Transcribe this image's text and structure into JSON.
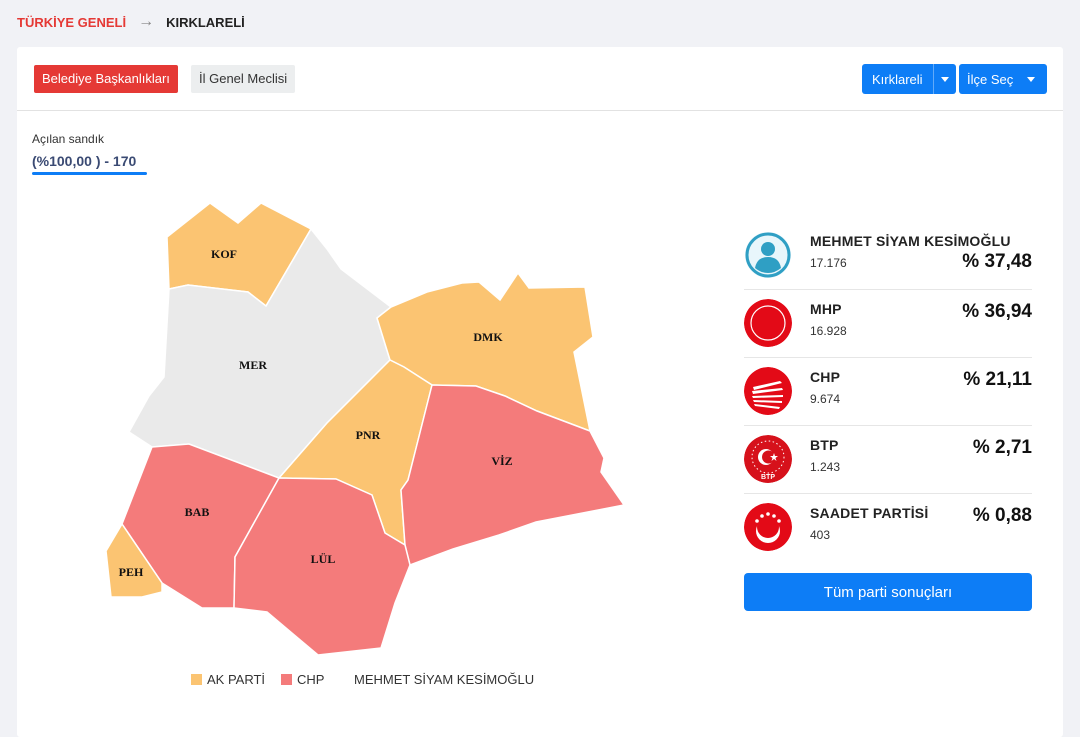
{
  "breadcrumb": {
    "home": "TÜRKİYE GENELİ",
    "current": "KIRKLARELİ"
  },
  "tabs": {
    "mayor": "Belediye Başkanlıkları",
    "council": "İl Genel Meclisi"
  },
  "dropdowns": {
    "province": "Kırklareli",
    "district": "İlçe Seç"
  },
  "sandik": {
    "label": "Açılan sandık",
    "value": "(%100,00 ) - 170",
    "progress_percent": 100
  },
  "colors": {
    "ak_parti": "#fbc472",
    "chp": "#f47b7b",
    "independent": "#eaeaea",
    "accent": "#0d7df6",
    "brand_red": "#e53935"
  },
  "districts": [
    {
      "code": "KOF",
      "winner": "ak_parti"
    },
    {
      "code": "MER",
      "winner": "independent"
    },
    {
      "code": "DMK",
      "winner": "ak_parti"
    },
    {
      "code": "PNR",
      "winner": "ak_parti"
    },
    {
      "code": "VİZ",
      "winner": "chp"
    },
    {
      "code": "BAB",
      "winner": "chp"
    },
    {
      "code": "LÜL",
      "winner": "chp"
    },
    {
      "code": "PEH",
      "winner": "ak_parti"
    }
  ],
  "legend": {
    "ak_parti": "AK PARTİ",
    "chp": "CHP",
    "independent": "MEHMET SİYAM KESİMOĞLU"
  },
  "results": [
    {
      "name": "MEHMET SİYAM KESİMOĞLU",
      "votes": "17.176",
      "percent": "% 37,48",
      "icon": "person-avatar-icon"
    },
    {
      "name": "MHP",
      "votes": "16.928",
      "percent": "% 36,94",
      "icon": "mhp-crescents-icon"
    },
    {
      "name": "CHP",
      "votes": "9.674",
      "percent": "% 21,11",
      "icon": "chp-arrows-icon"
    },
    {
      "name": "BTP",
      "votes": "1.243",
      "percent": "% 2,71",
      "icon": "btp-crescent-star-icon",
      "logo_text": "BTP"
    },
    {
      "name": "SAADET PARTİSİ",
      "votes": "403",
      "percent": "% 0,88",
      "icon": "saadet-crescent-stars-icon"
    }
  ],
  "all_results_button": "Tüm parti sonuçları"
}
